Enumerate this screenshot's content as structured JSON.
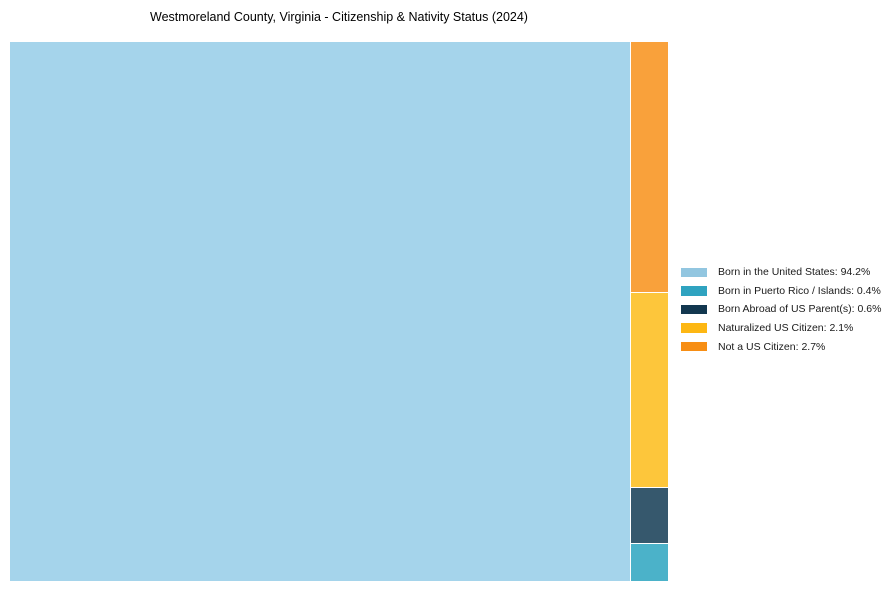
{
  "title": "Westmoreland County, Virginia - Citizenship & Nativity Status (2024)",
  "chart_data": {
    "type": "treemap",
    "title": "Westmoreland County, Virginia - Citizenship & Nativity Status (2024)",
    "unit": "percent",
    "total": 100,
    "legend_position": "right",
    "grid": false,
    "items": [
      {
        "label": "Born in the United States",
        "value": 94.2,
        "legend_text": "Born in the United States: 94.2%",
        "color": "#92C6E0",
        "fill": "#A5D4EB"
      },
      {
        "label": "Born in Puerto Rico / Islands",
        "value": 0.4,
        "legend_text": "Born in Puerto Rico / Islands: 0.4%",
        "color": "#2FA3C0",
        "fill": "#4BB2C9"
      },
      {
        "label": "Born Abroad of US Parent(s)",
        "value": 0.6,
        "legend_text": "Born Abroad of US Parent(s): 0.6%",
        "color": "#12374F",
        "fill": "#36586D"
      },
      {
        "label": "Naturalized US Citizen",
        "value": 2.1,
        "legend_text": "Naturalized US Citizen: 2.1%",
        "color": "#FDB713",
        "fill": "#FDC63B"
      },
      {
        "label": "Not a US Citizen",
        "value": 2.7,
        "legend_text": "Not a US Citizen: 2.7%",
        "color": "#F78E14",
        "fill": "#F9A13B"
      }
    ],
    "layout_hints": {
      "main_tile": "Born in the United States",
      "side_column_order_top_to_bottom": [
        "Not a US Citizen",
        "Naturalized US Citizen",
        "Born Abroad of US Parent(s)",
        "Born in Puerto Rico / Islands"
      ]
    }
  }
}
